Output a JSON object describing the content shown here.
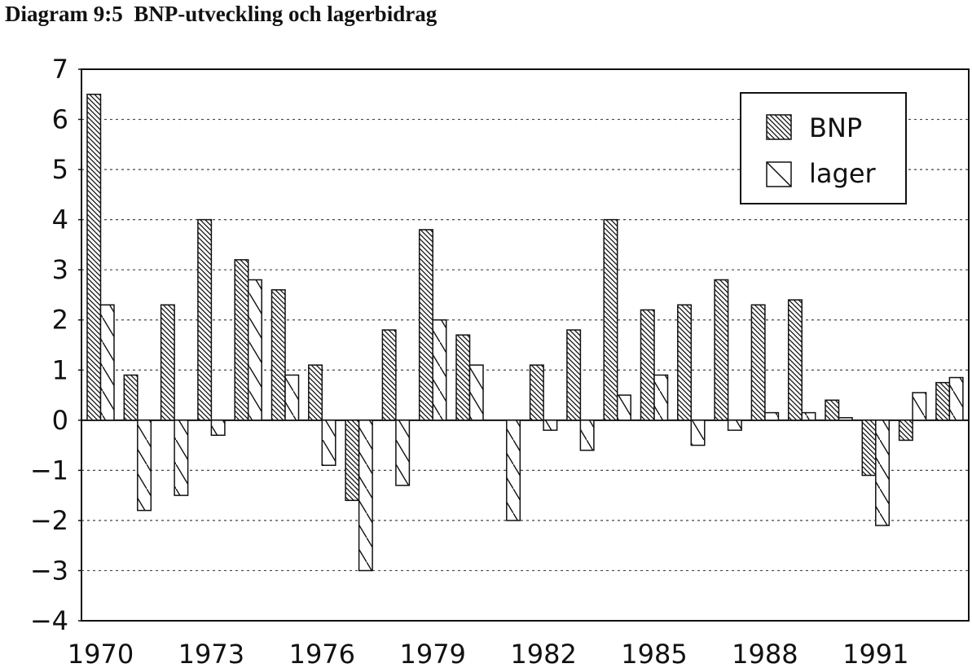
{
  "chart_data": {
    "type": "bar",
    "title": "Diagram 9:5  BNP-utveckling och lagerbidrag",
    "x": [
      1970,
      1971,
      1972,
      1973,
      1974,
      1975,
      1976,
      1977,
      1978,
      1979,
      1980,
      1981,
      1982,
      1983,
      1984,
      1985,
      1986,
      1987,
      1988,
      1989,
      1990,
      1991,
      1992,
      1993
    ],
    "x_tick_labels": [
      "1970",
      "1973",
      "1976",
      "1979",
      "1982",
      "1985",
      "1988",
      "1991"
    ],
    "y_tick_labels": [
      "7",
      "6",
      "5",
      "4",
      "3",
      "2",
      "1",
      "0",
      "−1",
      "−2",
      "−3",
      "−4"
    ],
    "ylim": [
      -4,
      7
    ],
    "grid": "horizontal-dashed",
    "legend_position": "top-right",
    "series": [
      {
        "name": "BNP",
        "pattern": "dense-diagonal-hatch",
        "values": [
          6.5,
          0.9,
          2.3,
          4.0,
          3.2,
          2.6,
          1.1,
          -1.6,
          1.8,
          3.8,
          1.7,
          0.0,
          1.1,
          1.8,
          4.0,
          2.2,
          2.3,
          2.8,
          2.3,
          2.4,
          0.4,
          -1.1,
          -0.4,
          0.75
        ]
      },
      {
        "name": "lager",
        "pattern": "sparse-diagonal-hatch",
        "values": [
          2.3,
          -1.8,
          -1.5,
          -0.3,
          2.8,
          0.9,
          -0.9,
          -3.0,
          -1.3,
          2.0,
          1.1,
          -2.0,
          -0.2,
          -0.6,
          0.5,
          0.9,
          -0.5,
          -0.2,
          0.15,
          0.15,
          0.05,
          -2.1,
          0.55,
          0.85
        ]
      }
    ]
  }
}
